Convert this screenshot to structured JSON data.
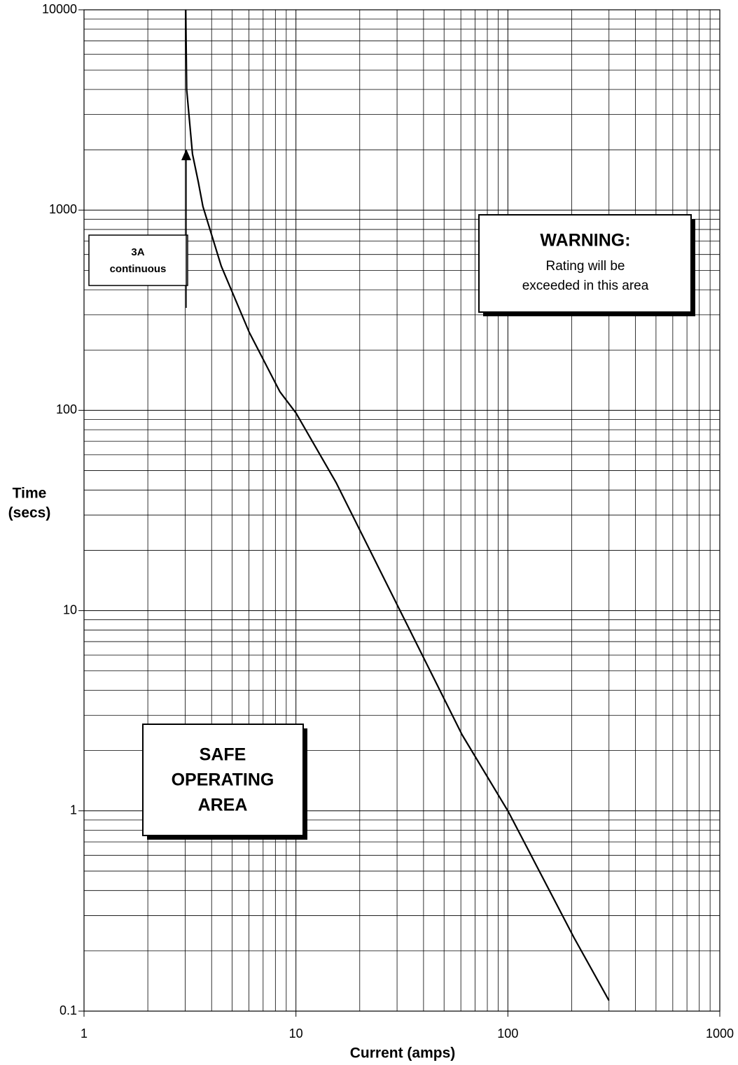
{
  "chart_data": {
    "type": "line",
    "x": [
      3.02,
      3.05,
      3.25,
      3.46,
      3.64,
      4.44,
      6.02,
      8.41,
      10,
      15.5,
      30.7,
      60.8,
      100.5,
      205,
      300
    ],
    "series": [
      {
        "color": "#000000",
        "values": [
          10000,
          4000,
          1905,
          1382,
          1042,
          526,
          245,
          123.6,
          97,
          43.4,
          10.2,
          2.4,
          0.99,
          0.233,
          0.113
        ]
      }
    ],
    "xlabel": "Current (amps)",
    "ylabel": [
      "Time",
      "(secs)"
    ],
    "xlim": [
      1,
      1000
    ],
    "xticks": [
      1,
      10,
      100,
      1000
    ],
    "ylim": [
      0.1,
      10000
    ],
    "yticks": [
      0.1,
      1,
      10,
      100,
      1000,
      10000
    ],
    "xscale": "log",
    "yscale": "log",
    "grid": true,
    "annotation_3a": [
      "3A",
      "continuous"
    ],
    "warning_title": "WARNING:",
    "warning_text": [
      "Rating will be",
      "exceeded in this area"
    ],
    "safe_area": [
      "SAFE",
      "OPERATING",
      "AREA"
    ]
  }
}
